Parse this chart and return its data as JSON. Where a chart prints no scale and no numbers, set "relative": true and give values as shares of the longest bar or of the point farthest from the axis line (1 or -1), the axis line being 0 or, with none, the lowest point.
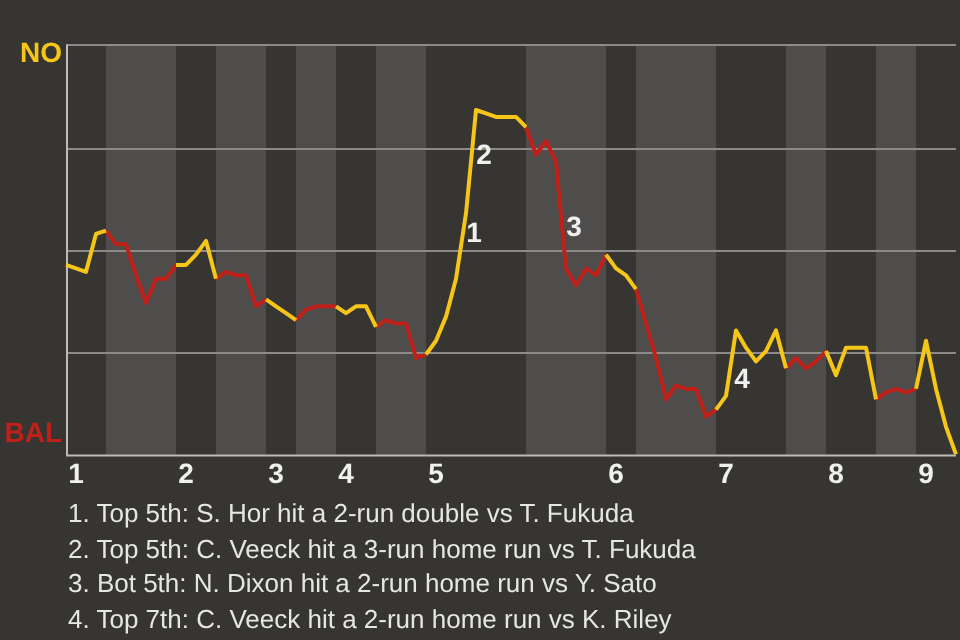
{
  "chart_data": {
    "type": "line",
    "relative": true,
    "categories": [
      null,
      "1",
      null,
      null,
      null,
      null,
      null,
      null,
      null,
      null,
      null,
      null,
      "2",
      null,
      null,
      null,
      null,
      null,
      null,
      null,
      null,
      "3",
      null,
      null,
      null,
      null,
      null,
      null,
      "4",
      null,
      null,
      null,
      null,
      null,
      null,
      null,
      null,
      "5",
      null,
      null,
      null,
      null,
      null,
      null,
      null,
      null,
      null,
      null,
      null,
      null,
      null,
      null,
      null,
      null,
      null,
      "6",
      null,
      null,
      null,
      null,
      null,
      null,
      null,
      null,
      null,
      null,
      "7",
      null,
      null,
      null,
      null,
      null,
      null,
      null,
      null,
      null,
      null,
      "8",
      null,
      null,
      null,
      null,
      null,
      null,
      null,
      null,
      "9",
      null,
      null,
      null
    ],
    "grid": "y",
    "marker": "none",
    "line_style": "solid",
    "series": [
      {
        "color": "#f5c518",
        "values": [
          0.55,
          0.54,
          0.53,
          0.64,
          0.65,
          null,
          null,
          null,
          null,
          null,
          null,
          0.55,
          0.55,
          0.58,
          0.62,
          0.51,
          null,
          null,
          null,
          null,
          0.45,
          0.43,
          0.41,
          0.39,
          null,
          null,
          null,
          0.43,
          0.41,
          0.43,
          0.43,
          0.37,
          null,
          null,
          null,
          null,
          0.29,
          0.33,
          0.4,
          0.51,
          0.7,
          1,
          0.99,
          0.98,
          0.98,
          0.98,
          0.95,
          null,
          null,
          null,
          null,
          null,
          null,
          null,
          0.58,
          0.54,
          0.52,
          0.48,
          null,
          null,
          null,
          null,
          null,
          null,
          null,
          0.13,
          0.17,
          0.36,
          0.31,
          0.27,
          0.3,
          0.36,
          0.25,
          null,
          null,
          null,
          0.3,
          0.23,
          0.31,
          0.31,
          0.31,
          0.16,
          null,
          null,
          null,
          0.19,
          0.33,
          0.19,
          0.08,
          0
        ]
      },
      {
        "color": "#c0201a",
        "values": [
          null,
          null,
          null,
          null,
          0.65,
          0.61,
          0.61,
          0.52,
          0.44,
          0.51,
          0.51,
          0.55,
          null,
          null,
          null,
          0.51,
          0.53,
          0.52,
          0.52,
          0.43,
          0.45,
          null,
          null,
          0.39,
          0.42,
          0.43,
          0.43,
          0.43,
          null,
          null,
          null,
          0.37,
          0.39,
          0.38,
          0.38,
          0.28,
          0.29,
          null,
          null,
          null,
          null,
          null,
          null,
          null,
          null,
          null,
          0.95,
          0.87,
          0.91,
          0.85,
          0.54,
          0.49,
          0.54,
          0.52,
          0.58,
          null,
          null,
          0.48,
          0.38,
          0.28,
          0.16,
          0.2,
          0.19,
          0.19,
          0.11,
          0.13,
          null,
          null,
          null,
          null,
          null,
          null,
          0.25,
          0.28,
          0.25,
          0.27,
          0.3,
          null,
          null,
          null,
          null,
          0.16,
          0.18,
          0.19,
          0.18,
          0.19,
          null,
          null,
          null,
          null
        ]
      }
    ],
    "annotations": [
      "NO",
      "BAL",
      "1",
      "2",
      "3",
      "4",
      "1. Top 5th: S. Hor hit a 2-run double vs T. Fukuda",
      "2. Top 5th: C. Veeck hit a 3-run home run vs T. Fukuda",
      "3. Bot 5th: N. Dixon hit a 2-run home run vs Y. Sato",
      "4. Top 7th: C. Veeck hit a 2-run home run vs K. Riley"
    ]
  }
}
